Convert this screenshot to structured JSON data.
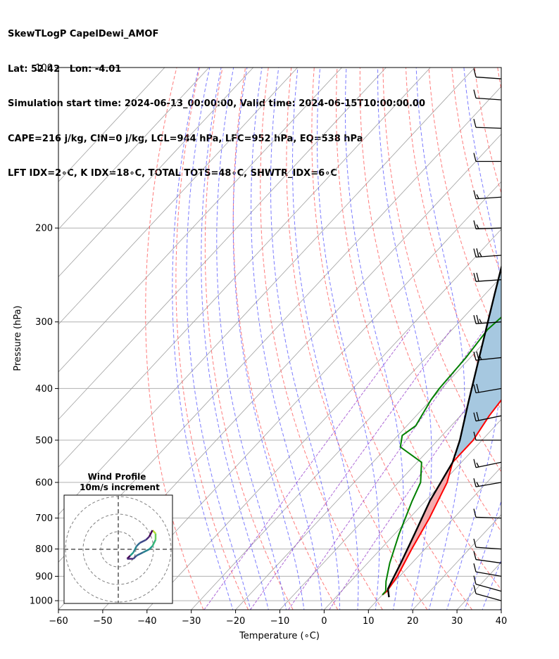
{
  "header": {
    "lines": [
      "SkewTLogP CapelDewi_AMOF",
      "Lat: 52.42   Lon: -4.01",
      "Simulation start time: 2024-06-13_00:00:00, Valid time: 2024-06-15T10:00:00.00",
      "CAPE=216 j/kg, CIN=0 j/kg, LCL=944 hPa, LFC=952 hPa, EQ=538 hPa",
      "LFT IDX=2∘C, K IDX=18∘C, TOTAL TOTS=48∘C, SHWTR_IDX=6∘C"
    ]
  },
  "chart_data": {
    "type": "line",
    "chart_kind": "skew-t log-p",
    "xlabel": "Temperature (∘C)",
    "ylabel": "Pressure (hPa)",
    "xlim": [
      -60,
      40
    ],
    "ylim": [
      1040,
      100
    ],
    "y_scale": "log",
    "grid": true,
    "x_ticks": [
      -60,
      -50,
      -40,
      -30,
      -20,
      -10,
      0,
      10,
      20,
      30,
      40
    ],
    "y_ticks": [
      100,
      200,
      300,
      400,
      500,
      600,
      700,
      800,
      900,
      1000
    ],
    "colors": {
      "temperature": "#ff0000",
      "dewpoint": "#008000",
      "parcel": "#000000",
      "cape_fill": "#f4a6a9",
      "upper_fill": "#a6c8e0",
      "dry_adiabat": "#ff5050",
      "moist_adiabat": "#5050ff",
      "mixing_ratio": "#a050d0",
      "isotherm": "#a0a0a0",
      "isobar": "#b0b0b0"
    },
    "series": [
      {
        "key": "temperature",
        "points": [
          [
            10,
            975
          ],
          [
            10.3,
            960
          ],
          [
            9.5,
            900
          ],
          [
            7,
            800
          ],
          [
            4.5,
            700
          ],
          [
            1,
            600
          ],
          [
            -2,
            550
          ],
          [
            -2,
            500
          ],
          [
            -3.5,
            450
          ],
          [
            -4.5,
            400
          ],
          [
            -4.5,
            350
          ],
          [
            -3,
            300
          ],
          [
            -1,
            260
          ],
          [
            2,
            240
          ],
          [
            6,
            220
          ],
          [
            9,
            200
          ],
          [
            13,
            175
          ],
          [
            14.5,
            150
          ],
          [
            16,
            130
          ],
          [
            18,
            112
          ],
          [
            20.5,
            100
          ]
        ]
      },
      {
        "key": "dewpoint",
        "points": [
          [
            10,
            975
          ],
          [
            10,
            960
          ],
          [
            8,
            920
          ],
          [
            5,
            850
          ],
          [
            1,
            750
          ],
          [
            -3,
            650
          ],
          [
            -5,
            600
          ],
          [
            -9,
            550
          ],
          [
            -17,
            515
          ],
          [
            -19,
            490
          ],
          [
            -18,
            470
          ],
          [
            -20,
            420
          ],
          [
            -20.5,
            400
          ],
          [
            -21,
            350
          ],
          [
            -22,
            310
          ],
          [
            -21,
            280
          ],
          [
            -21,
            250
          ],
          [
            -27,
            230
          ],
          [
            -33,
            215
          ],
          [
            -28,
            190
          ],
          [
            -21,
            160
          ],
          [
            -14,
            130
          ],
          [
            -8,
            110
          ],
          [
            -5,
            100
          ]
        ]
      },
      {
        "key": "parcel",
        "points": [
          [
            12,
            985
          ],
          [
            10,
            950
          ],
          [
            7.5,
            850
          ],
          [
            4.5,
            750
          ],
          [
            1,
            650
          ],
          [
            -2,
            550
          ],
          [
            -5,
            500
          ],
          [
            -11,
            425
          ],
          [
            -18,
            350
          ],
          [
            -28,
            265
          ],
          [
            -38,
            200
          ],
          [
            -48,
            150
          ],
          [
            -56,
            125
          ],
          [
            -62,
            100
          ]
        ]
      }
    ],
    "wind_barbs": [
      {
        "p": 1000,
        "ws": 10,
        "wd": 230
      },
      {
        "p": 960,
        "ws": 10,
        "wd": 230
      },
      {
        "p": 900,
        "ws": 10,
        "wd": 245
      },
      {
        "p": 850,
        "ws": 10,
        "wd": 250
      },
      {
        "p": 800,
        "ws": 10,
        "wd": 260
      },
      {
        "p": 700,
        "ws": 10,
        "wd": 265
      },
      {
        "p": 600,
        "ws": 15,
        "wd": 295
      },
      {
        "p": 550,
        "ws": 15,
        "wd": 300
      },
      {
        "p": 500,
        "ws": 10,
        "wd": 270
      },
      {
        "p": 450,
        "ws": 20,
        "wd": 300
      },
      {
        "p": 400,
        "ws": 20,
        "wd": 295
      },
      {
        "p": 350,
        "ws": 25,
        "wd": 285
      },
      {
        "p": 300,
        "ws": 25,
        "wd": 280
      },
      {
        "p": 250,
        "ws": 20,
        "wd": 280
      },
      {
        "p": 225,
        "ws": 25,
        "wd": 280
      },
      {
        "p": 200,
        "ws": 15,
        "wd": 275
      },
      {
        "p": 175,
        "ws": 15,
        "wd": 280
      },
      {
        "p": 150,
        "ws": 10,
        "wd": 270
      },
      {
        "p": 130,
        "ws": 10,
        "wd": 265
      },
      {
        "p": 115,
        "ws": 10,
        "wd": 260
      },
      {
        "p": 105,
        "ws": 10,
        "wd": 260
      }
    ],
    "wind_profile_inset": {
      "title_line1": "Wind Profile",
      "title_line2": "10m/s increment",
      "ring_increment_ms": 10,
      "hodograph_uv": [
        [
          -2,
          2
        ],
        [
          -3,
          3
        ],
        [
          -1,
          3
        ],
        [
          0,
          2
        ],
        [
          2,
          1
        ],
        [
          4,
          0
        ],
        [
          5,
          -1
        ],
        [
          6,
          -3
        ],
        [
          6,
          -5
        ],
        [
          5,
          -6
        ],
        [
          4,
          -4
        ],
        [
          3,
          -3
        ],
        [
          1,
          -2
        ],
        [
          0,
          -1
        ],
        [
          -1,
          1
        ],
        [
          -2,
          2
        ]
      ]
    }
  }
}
